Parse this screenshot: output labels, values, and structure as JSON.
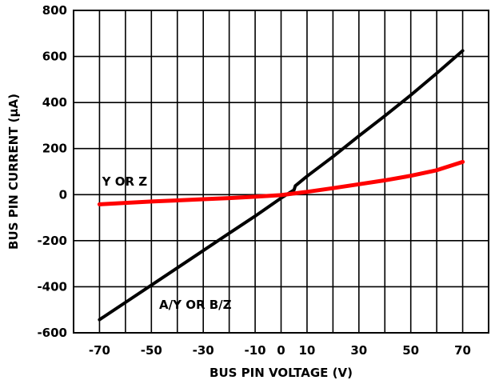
{
  "chart_data": {
    "type": "line",
    "title": "",
    "xlabel": "BUS PIN VOLTAGE (V)",
    "ylabel": "BUS PIN CURRENT (µA)",
    "xlim": [
      -80,
      80
    ],
    "ylim": [
      -600,
      800
    ],
    "x_ticks": [
      -70,
      -50,
      -30,
      -10,
      0,
      10,
      30,
      50,
      70
    ],
    "x_tick_labels": [
      "-70",
      "-50",
      "-30",
      "-10",
      "0",
      "10",
      "30",
      "50",
      "70"
    ],
    "y_ticks": [
      -600,
      -400,
      -200,
      0,
      200,
      400,
      600,
      800
    ],
    "y_tick_labels": [
      "-600",
      "-400",
      "-200",
      "0",
      "200",
      "400",
      "600",
      "800"
    ],
    "vertical_grid_x": [
      -70,
      -60,
      -50,
      -40,
      -30,
      -20,
      -10,
      0,
      10,
      20,
      30,
      40,
      50,
      60,
      70
    ],
    "horizontal_grid_y": [
      -400,
      -200,
      0,
      200,
      400,
      600
    ],
    "grid": true,
    "series": [
      {
        "name": "A/Y OR B/Z",
        "color": "#000000",
        "x": [
          -70,
          -60,
          -50,
          -40,
          -30,
          -20,
          -10,
          0,
          5,
          5.5,
          10,
          20,
          30,
          40,
          50,
          60,
          70
        ],
        "y": [
          -543,
          -468,
          -393,
          -318,
          -243,
          -168,
          -93,
          -15,
          20,
          38,
          80,
          165,
          255,
          342,
          432,
          527,
          625
        ]
      },
      {
        "name": "Y OR Z",
        "color": "#ff0000",
        "x": [
          -70,
          -60,
          -50,
          -40,
          -30,
          -20,
          -10,
          0,
          10,
          20,
          30,
          40,
          50,
          60,
          70
        ],
        "y": [
          -42,
          -36,
          -30,
          -25,
          -20,
          -15,
          -9,
          -2,
          12,
          28,
          45,
          62,
          82,
          106,
          142
        ]
      }
    ],
    "annotations": [
      {
        "text": "Y OR Z",
        "x": -69,
        "y": 40
      },
      {
        "text": "A/Y OR B/Z",
        "x": -47,
        "y": -495
      }
    ]
  }
}
